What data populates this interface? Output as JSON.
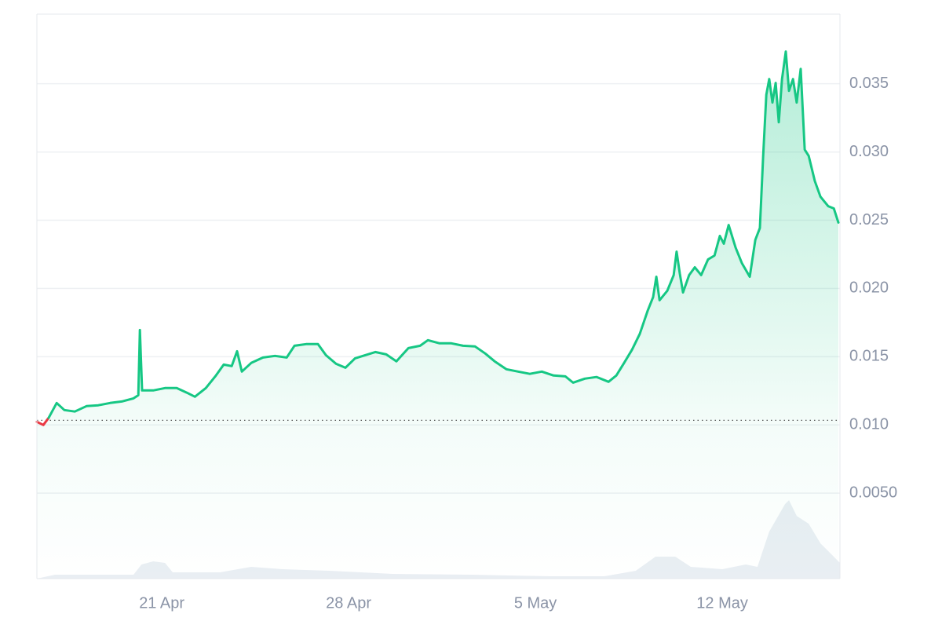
{
  "chart_data": {
    "type": "line",
    "x": [
      16.32,
      16.56,
      16.76,
      17.06,
      17.35,
      17.74,
      18.18,
      18.62,
      19.06,
      19.5,
      19.94,
      20.12,
      20.18,
      20.26,
      20.68,
      21.12,
      21.56,
      21.94,
      22.24,
      22.65,
      23.03,
      23.32,
      23.62,
      23.82,
      24.0,
      24.35,
      24.79,
      25.24,
      25.68,
      25.97,
      26.41,
      26.85,
      27.15,
      27.53,
      27.88,
      28.24,
      28.62,
      29.0,
      29.41,
      29.79,
      30.24,
      30.68,
      30.97,
      31.41,
      31.85,
      32.29,
      32.74,
      33.12,
      33.47,
      33.91,
      34.35,
      34.79,
      35.24,
      35.68,
      36.12,
      36.41,
      36.85,
      37.29,
      37.74,
      38.03,
      38.32,
      38.62,
      38.91,
      39.21,
      39.41,
      39.53,
      39.65,
      39.94,
      40.18,
      40.29,
      40.41,
      40.53,
      40.76,
      40.97,
      41.21,
      41.47,
      41.71,
      41.91,
      42.06,
      42.24,
      42.5,
      42.74,
      43.03,
      43.24,
      43.41,
      43.53,
      43.65,
      43.76,
      43.88,
      44.0,
      44.12,
      44.24,
      44.38,
      44.5,
      44.65,
      44.79,
      44.94,
      45.09,
      45.24,
      45.47,
      45.68,
      45.97,
      46.18,
      46.35
    ],
    "series": [
      {
        "values": [
          0.01023,
          0.01,
          0.01052,
          0.01161,
          0.01109,
          0.01098,
          0.01138,
          0.01144,
          0.01161,
          0.01172,
          0.01195,
          0.01218,
          0.01695,
          0.01253,
          0.01253,
          0.0127,
          0.0127,
          0.01236,
          0.01207,
          0.0127,
          0.01362,
          0.01442,
          0.01431,
          0.0154,
          0.01391,
          0.01454,
          0.01494,
          0.01506,
          0.01494,
          0.0158,
          0.01592,
          0.01592,
          0.01511,
          0.01448,
          0.01419,
          0.01488,
          0.01511,
          0.01534,
          0.01517,
          0.01466,
          0.01563,
          0.0158,
          0.01621,
          0.01598,
          0.01598,
          0.0158,
          0.01575,
          0.01523,
          0.01466,
          0.01408,
          0.01391,
          0.01374,
          0.01391,
          0.01362,
          0.01356,
          0.0131,
          0.01339,
          0.01351,
          0.01316,
          0.01362,
          0.01454,
          0.01552,
          0.01667,
          0.01839,
          0.01937,
          0.02086,
          0.01914,
          0.01983,
          0.02098,
          0.0227,
          0.02109,
          0.01971,
          0.02098,
          0.02155,
          0.02098,
          0.02213,
          0.02241,
          0.02385,
          0.02328,
          0.02465,
          0.02299,
          0.02184,
          0.02086,
          0.02356,
          0.02443,
          0.0296,
          0.0342,
          0.03534,
          0.03362,
          0.03506,
          0.03218,
          0.03534,
          0.03736,
          0.03448,
          0.03534,
          0.03362,
          0.03609,
          0.03017,
          0.02971,
          0.02787,
          0.02672,
          0.02603,
          0.02586,
          0.02483
        ]
      }
    ],
    "up_color": "#16c784",
    "down_color": "#ea3943",
    "baseline": 0.01034,
    "volume": {
      "axis": "y2",
      "color": "#e9eef3",
      "x": [
        16.32,
        17.0,
        17.88,
        19.94,
        20.24,
        20.68,
        21.12,
        21.41,
        23.18,
        24.35,
        25.53,
        27.29,
        29.65,
        32.59,
        35.53,
        37.59,
        38.76,
        39.5,
        40.24,
        40.82,
        42.0,
        42.88,
        43.32,
        43.76,
        44.35,
        44.5,
        44.79,
        45.24,
        45.68,
        46.12,
        46.41
      ],
      "values": [
        0,
        5,
        5,
        5,
        18,
        22,
        20,
        8,
        8,
        15,
        12,
        10,
        6,
        5,
        3,
        3,
        10,
        28,
        28,
        15,
        12,
        18,
        15,
        60,
        95,
        100,
        80,
        70,
        45,
        30,
        20
      ]
    },
    "xlim": [
      16.32,
      46.41
    ],
    "xticks": [
      {
        "value": 21,
        "label": "21 Apr"
      },
      {
        "value": 28,
        "label": "28 Apr"
      },
      {
        "value": 35,
        "label": "5 May"
      },
      {
        "value": 42,
        "label": "12 May"
      }
    ],
    "ylim": [
      -0.00126,
      0.0401
    ],
    "yticks": [
      {
        "value": 0.005,
        "label": "0.0050"
      },
      {
        "value": 0.01,
        "label": "0.010"
      },
      0.015,
      {
        "value": 0.02,
        "label": "0.020"
      },
      0.025,
      {
        "value": 0.03,
        "label": "0.030"
      },
      0.035
    ],
    "y2lim": [
      0,
      720
    ],
    "grid": true
  }
}
